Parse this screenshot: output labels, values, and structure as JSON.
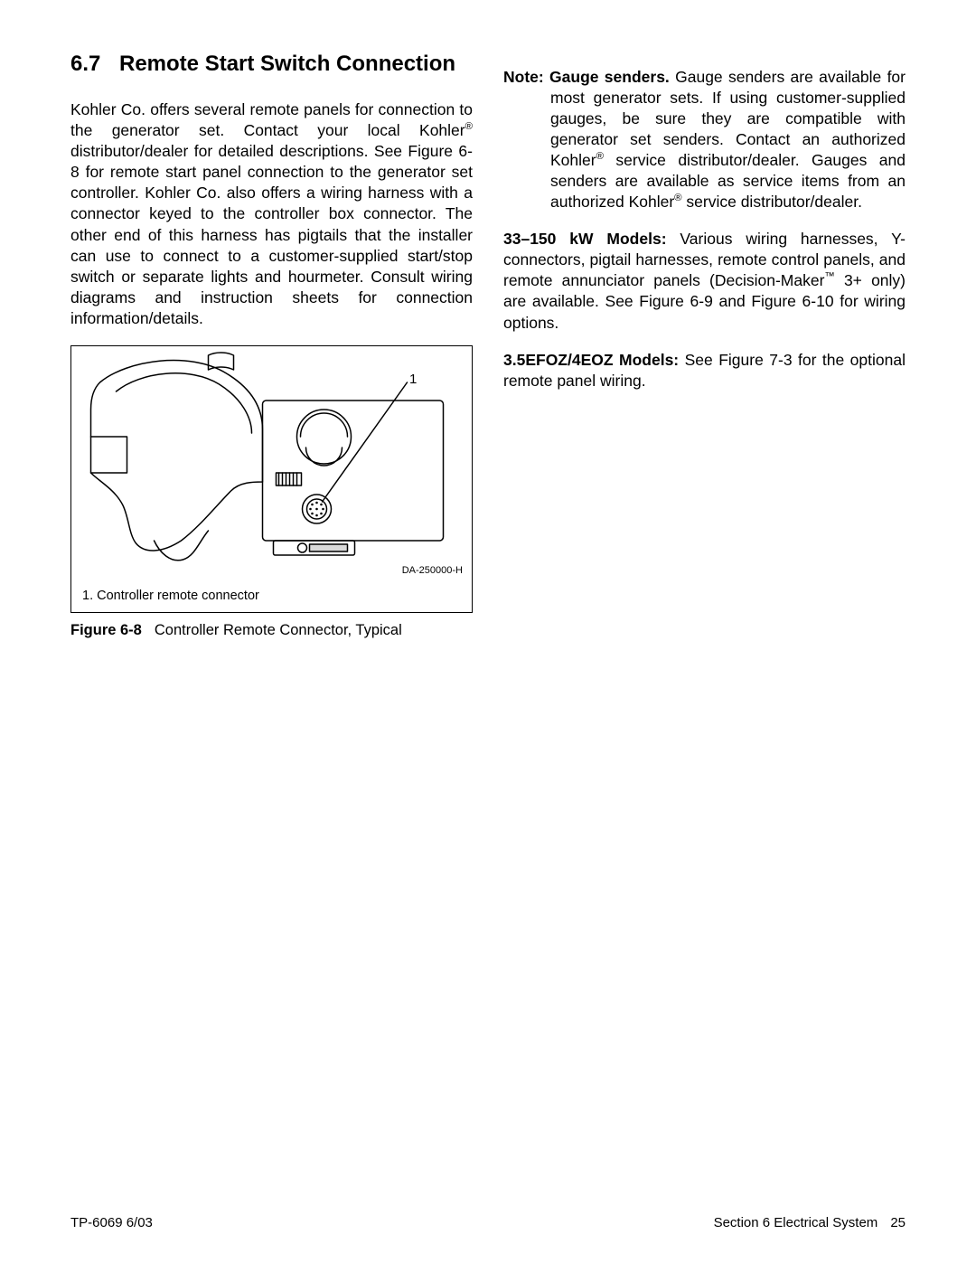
{
  "heading": {
    "number": "6.7",
    "title": "Remote Start Switch Connection"
  },
  "left_para": "Kohler Co. offers several remote panels for connection to the generator set.  Contact your local Kohler® distributor/dealer for detailed descriptions.  See Figure 6-8 for remote start panel connection to the generator set controller.  Kohler Co. also offers a wiring harness with a connector keyed to the controller box connector.  The other end of this harness has pigtails that the installer can use to connect to a customer-supplied start/stop switch or separate lights and hourmeter.  Consult wiring diagrams and instruction sheets for connection information/details.",
  "note": {
    "lead": "Note: Gauge senders.",
    "body": "Gauge senders are available for most generator sets.  If using customer-supplied gauges, be sure they are compatible with generator set senders.  Contact an authorized Kohler® service distributor/dealer. Gauges and senders are available as service items from an authorized Kohler® service distributor/dealer."
  },
  "para_models_a": {
    "lead": "33–150 kW Models:",
    "body": "Various wiring harnesses, Y-connectors, pigtail harnesses, remote control panels, and remote annunciator panels (Decision-Maker™ 3+ only) are available.  See Figure 6-9 and Figure 6-10 for wiring options."
  },
  "para_models_b": {
    "lead": "3.5EFOZ/4EOZ Models:",
    "body": "See Figure 7-3 for the optional remote panel wiring."
  },
  "figure": {
    "callout_number": "1",
    "code": "DA-250000-H",
    "legend": "1.  Controller remote connector",
    "caption_label": "Figure 6-8",
    "caption_text": "Controller Remote Connector, Typical",
    "stroke_color": "#000000",
    "stroke_width": 1.5,
    "bg": "#ffffff"
  },
  "footer": {
    "left": "TP-6069   6/03",
    "section": "Section 6  Electrical System",
    "page": "25"
  }
}
